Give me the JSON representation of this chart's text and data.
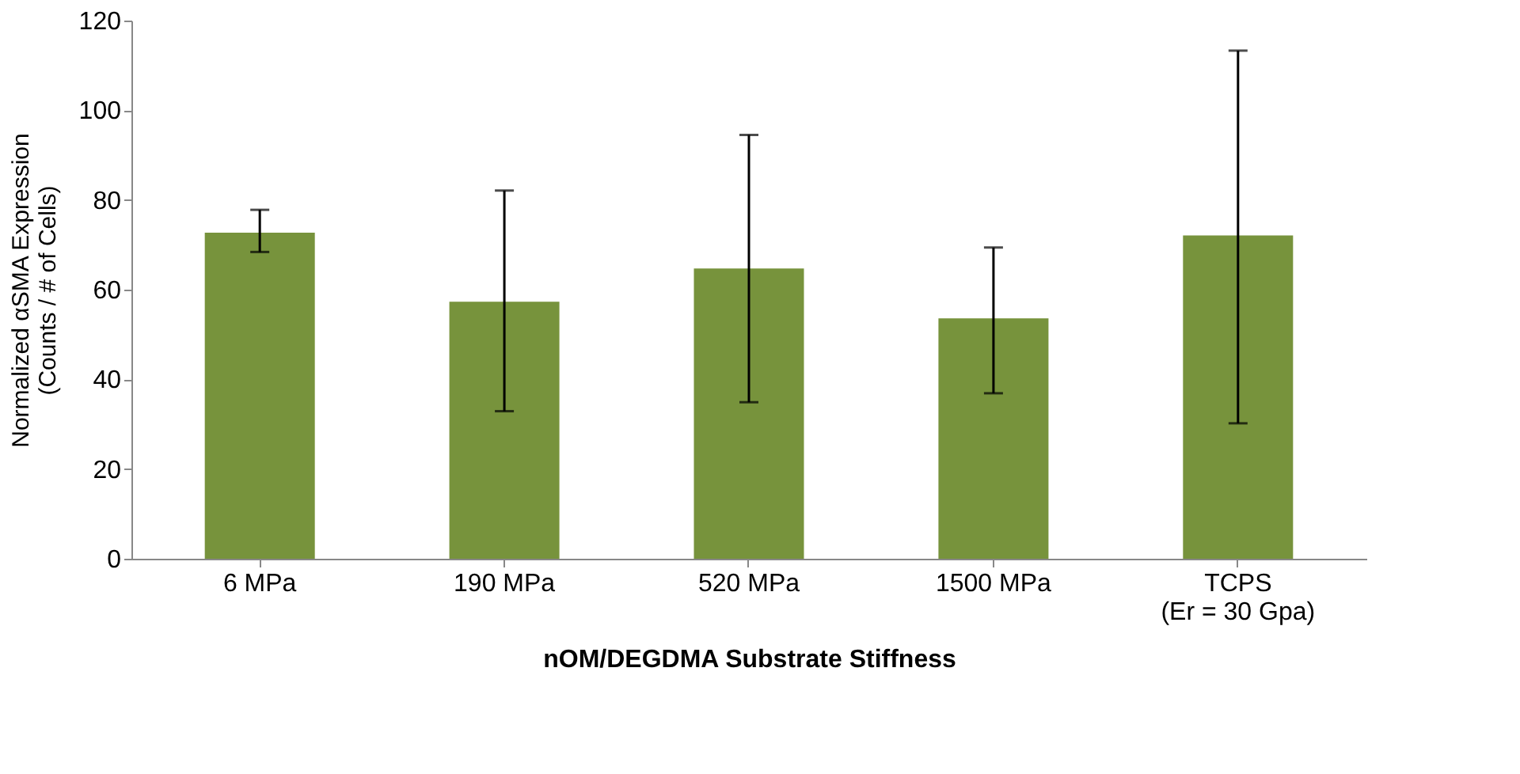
{
  "chart_data": {
    "type": "bar",
    "categories": [
      "6 MPa",
      "190 MPa",
      "520 MPa",
      "1500 MPa",
      "TCPS\n(Er = 30 Gpa)"
    ],
    "values": [
      72.7,
      57.3,
      64.7,
      53.6,
      72.1
    ],
    "errors": [
      [
        68.4,
        77.8
      ],
      [
        32.9,
        82.1
      ],
      [
        34.9,
        94.5
      ],
      [
        36.9,
        69.4
      ],
      [
        30.2,
        113.3
      ]
    ],
    "color": "#77933c",
    "xlabel": "nOM/DEGDMA  Substrate Stiffness",
    "ylabel": "Normalized αSMA Expression\n(Counts / # of Cells)",
    "ylim": [
      0,
      120
    ],
    "yticks": [
      0,
      20,
      40,
      60,
      80,
      100,
      120
    ],
    "grid": false
  }
}
